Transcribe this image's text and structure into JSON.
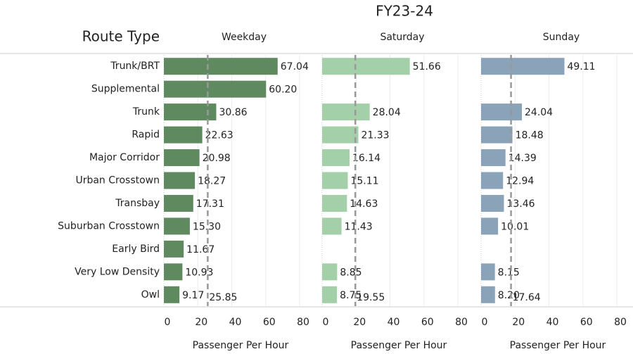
{
  "chart_data": {
    "type": "bar",
    "orientation": "horizontal",
    "title": "FY23-24",
    "category_label": "Route Type",
    "xlabel": "Passenger Per Hour",
    "categories": [
      "Trunk/BRT",
      "Supplemental",
      "Trunk",
      "Rapid",
      "Major Corridor",
      "Urban Crosstown",
      "Transbay",
      "Suburban Crosstown",
      "Early Bird",
      "Very Low Density",
      "Owl"
    ],
    "series": [
      {
        "name": "Weekday",
        "color": "#5f8a5f",
        "values": [
          67.04,
          60.2,
          30.86,
          22.63,
          20.98,
          18.27,
          17.31,
          15.3,
          11.67,
          10.93,
          9.17
        ],
        "value_labels": [
          "67.04",
          "60.20",
          "30.86",
          "22.63",
          "20.98",
          "18.27",
          "17.31",
          "15.30",
          "11.67",
          "10.93",
          "9.17"
        ],
        "reference": 25.85
      },
      {
        "name": "Saturday",
        "color": "#a3d0a8",
        "values": [
          51.66,
          null,
          28.04,
          21.33,
          16.14,
          15.11,
          14.63,
          11.43,
          null,
          8.85,
          8.75
        ],
        "value_labels": [
          "51.66",
          null,
          "28.04",
          "21.33",
          "16.14",
          "15.11",
          "14.63",
          "11.43",
          null,
          "8.85",
          "8.75"
        ],
        "reference": 19.55
      },
      {
        "name": "Sunday",
        "color": "#8aa3b8",
        "values": [
          49.11,
          null,
          24.04,
          18.48,
          14.39,
          12.94,
          13.46,
          10.01,
          null,
          8.15,
          8.2
        ],
        "value_labels": [
          "49.11",
          null,
          "24.04",
          "18.48",
          "14.39",
          "12.94",
          "13.46",
          "10.01",
          null,
          "8.15",
          "8.20"
        ],
        "reference": 17.64
      }
    ],
    "xlim": [
      0,
      92
    ],
    "xticks": [
      0,
      20,
      40,
      60,
      80
    ],
    "grid": true
  }
}
